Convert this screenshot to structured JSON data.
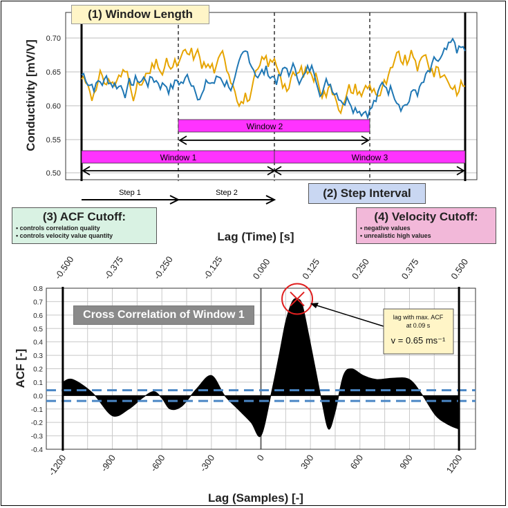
{
  "top_panel": {
    "title": "(1) Window Length",
    "ylabel": "Conductivity [mV/V]",
    "yticks": [
      "0.70",
      "0.65",
      "0.60",
      "0.55",
      "0.50"
    ],
    "colors": {
      "series_a": "#1f77b4",
      "series_b": "#e6a400",
      "window": "#ff33ff"
    },
    "windows": [
      {
        "label": "Window 1"
      },
      {
        "label": "Window 2"
      },
      {
        "label": "Window 3"
      }
    ],
    "steps": [
      "Step 1",
      "Step 2"
    ]
  },
  "step_interval_box": {
    "title": "(2) Step Interval",
    "color": "#c9d7f2"
  },
  "acf_cutoff_box": {
    "title": "(3) ACF Cutoff:",
    "color": "#d9f2e3",
    "bullets": [
      "controls correlation quality",
      "controls velocity value quantity"
    ]
  },
  "velocity_cutoff_box": {
    "title": "(4) Velocity Cutoff:",
    "color": "#f2b8d9",
    "bullets": [
      "negative values",
      "unrealistic high values"
    ]
  },
  "chart_data": {
    "type": "area",
    "title": "Cross Correlation of Window 1",
    "ylabel": "ACF [-]",
    "xlabel": "Lag (Samples) [-]",
    "x2label": "Lag (Time) [s]",
    "xlim": [
      -1300,
      1300
    ],
    "ylim": [
      -0.4,
      0.8
    ],
    "xticks": [
      "-1200",
      "-900",
      "-600",
      "-300",
      "0",
      "300",
      "600",
      "900",
      "1200"
    ],
    "x2ticks": [
      "-0.500",
      "-0.375",
      "-0.250",
      "-0.125",
      "0.000",
      "0.125",
      "0.250",
      "0.375",
      "0.500"
    ],
    "yticks": [
      "0.8",
      "0.7",
      "0.6",
      "0.5",
      "0.4",
      "0.3",
      "0.2",
      "0.1",
      "0.0",
      "-0.1",
      "-0.2",
      "-0.3",
      "-0.4"
    ],
    "grid": true,
    "cutoff_lines": [
      0.04,
      -0.04
    ],
    "x": [
      -1200,
      -1140,
      -1020,
      -900,
      -800,
      -720,
      -650,
      -600,
      -550,
      -480,
      -390,
      -300,
      -220,
      -140,
      -60,
      0,
      60,
      110,
      150,
      190,
      220,
      250,
      290,
      330,
      370,
      410,
      450,
      500,
      550,
      620,
      700,
      800,
      900,
      980,
      1060,
      1140,
      1200
    ],
    "y": [
      0.1,
      0.12,
      0.02,
      -0.15,
      -0.1,
      -0.02,
      0.03,
      -0.02,
      -0.1,
      -0.08,
      0.05,
      0.15,
      0.0,
      -0.1,
      -0.2,
      -0.3,
      0.0,
      0.3,
      0.55,
      0.7,
      0.72,
      0.68,
      0.45,
      0.2,
      -0.05,
      -0.25,
      -0.12,
      0.15,
      0.2,
      0.15,
      0.12,
      0.13,
      0.12,
      0.0,
      -0.15,
      -0.22,
      -0.25
    ],
    "peak": {
      "x": 220,
      "y": 0.72
    },
    "annotation": {
      "line1": "lag with max. ACF",
      "line2": "at 0.09 s",
      "velocity": "v = 0.65 ms⁻¹"
    }
  }
}
